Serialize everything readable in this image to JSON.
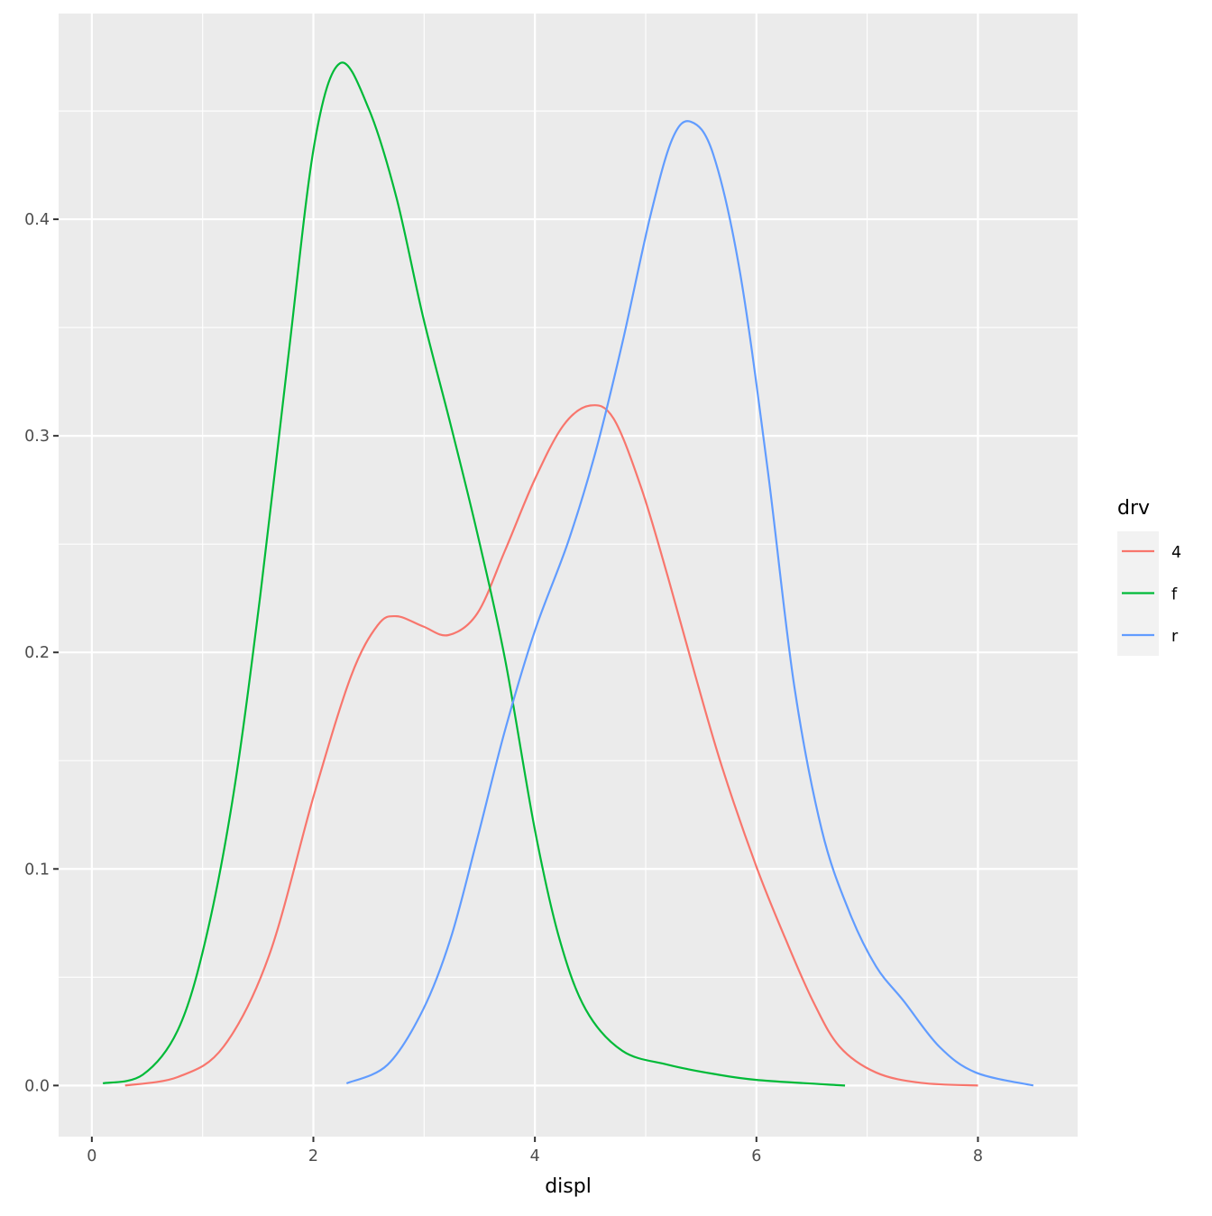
{
  "chart_data": {
    "type": "line",
    "subtype": "density",
    "title": "",
    "xlabel": "displ",
    "ylabel": "",
    "xlim": [
      -0.3,
      8.9
    ],
    "ylim": [
      -0.0236,
      0.495
    ],
    "x_ticks": [
      0,
      2,
      4,
      6,
      8
    ],
    "x_tick_labels": [
      "0",
      "2",
      "4",
      "6",
      "8"
    ],
    "y_ticks": [
      0.0,
      0.1,
      0.2,
      0.3,
      0.4
    ],
    "y_tick_labels": [
      "0.0",
      "0.1",
      "0.2",
      "0.3",
      "0.4"
    ],
    "grid": true,
    "legend": {
      "title": "drv",
      "position": "right"
    },
    "series": [
      {
        "name": "4",
        "color": "#F8766D",
        "x": [
          0.3,
          0.78,
          1.19,
          1.6,
          2.01,
          2.34,
          2.58,
          2.75,
          2.99,
          3.22,
          3.48,
          3.73,
          4.0,
          4.26,
          4.5,
          4.71,
          4.96,
          5.2,
          5.45,
          5.69,
          6.0,
          6.26,
          6.51,
          6.75,
          7.08,
          7.49,
          8.0
        ],
        "y": [
          0.0,
          0.004,
          0.018,
          0.06,
          0.135,
          0.189,
          0.2125,
          0.2167,
          0.212,
          0.208,
          0.218,
          0.247,
          0.28,
          0.305,
          0.314,
          0.308,
          0.276,
          0.235,
          0.189,
          0.147,
          0.101,
          0.068,
          0.039,
          0.018,
          0.006,
          0.0012,
          0.0
        ]
      },
      {
        "name": "f",
        "color": "#00BA38",
        "x": [
          0.1,
          0.46,
          0.78,
          1.03,
          1.28,
          1.52,
          1.77,
          2.01,
          2.24,
          2.5,
          2.75,
          2.99,
          3.24,
          3.48,
          3.73,
          4.0,
          4.22,
          4.46,
          4.79,
          5.2,
          5.61,
          6.02,
          6.8
        ],
        "y": [
          0.001,
          0.005,
          0.026,
          0.068,
          0.135,
          0.226,
          0.335,
          0.435,
          0.472,
          0.451,
          0.41,
          0.355,
          0.305,
          0.255,
          0.197,
          0.118,
          0.068,
          0.035,
          0.016,
          0.0096,
          0.0054,
          0.0025,
          0.0
        ]
      },
      {
        "name": "r",
        "color": "#619CFF",
        "x": [
          2.3,
          2.67,
          2.99,
          3.24,
          3.48,
          3.73,
          4.0,
          4.3,
          4.55,
          4.79,
          5.04,
          5.24,
          5.41,
          5.61,
          5.85,
          6.1,
          6.34,
          6.59,
          6.84,
          7.08,
          7.33,
          7.65,
          7.98,
          8.5
        ],
        "y": [
          0.001,
          0.0096,
          0.035,
          0.068,
          0.114,
          0.164,
          0.21,
          0.251,
          0.293,
          0.343,
          0.401,
          0.437,
          0.445,
          0.43,
          0.376,
          0.285,
          0.185,
          0.118,
          0.08,
          0.055,
          0.039,
          0.018,
          0.006,
          0.0
        ]
      }
    ]
  }
}
